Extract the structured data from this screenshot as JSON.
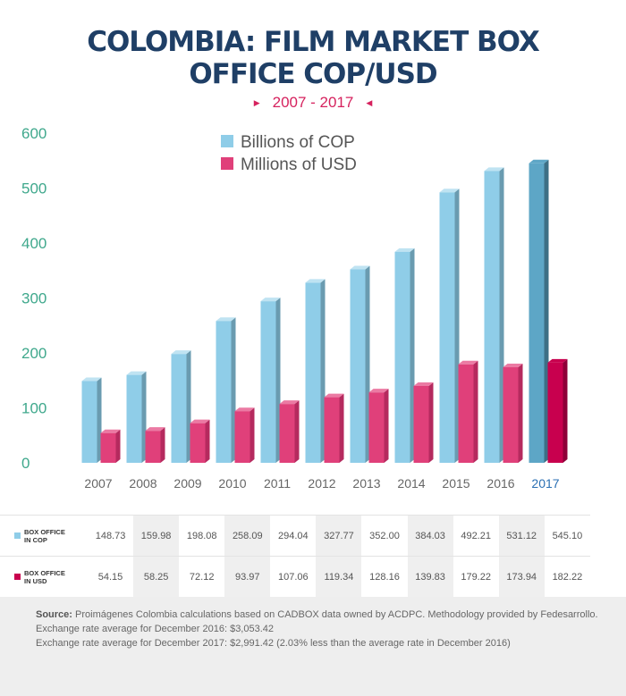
{
  "title_line1": "COLOMBIA: FILM MARKET BOX",
  "title_line2": "OFFICE COP/USD",
  "subtitle": "2007 - 2017",
  "colors": {
    "cop": "#8fcde8",
    "cop_side": "#6a9bb0",
    "cop_top": "#bfe3f2",
    "usd": "#e0407a",
    "usd_side": "#b52a5e",
    "usd_top": "#eb7aa3",
    "cop_hl": "#5da6c6",
    "cop_hl_side": "#3d6f85",
    "usd_hl": "#c8004e",
    "usd_hl_side": "#8e0038"
  },
  "chart_data": {
    "type": "bar",
    "categories": [
      "2007",
      "2008",
      "2009",
      "2010",
      "2011",
      "2012",
      "2013",
      "2014",
      "2015",
      "2016",
      "2017"
    ],
    "series": [
      {
        "name": "Billions of COP",
        "values": [
          148.73,
          159.98,
          198.08,
          258.09,
          294.04,
          327.77,
          352.0,
          384.03,
          492.21,
          531.12,
          545.1
        ]
      },
      {
        "name": "Millions of USD",
        "values": [
          54.15,
          58.25,
          72.12,
          93.97,
          107.06,
          119.34,
          128.16,
          139.83,
          179.22,
          173.94,
          182.22
        ]
      }
    ],
    "ylim": [
      0,
      600
    ],
    "yticks": [
      "0",
      "100",
      "200",
      "300",
      "400",
      "500",
      "600"
    ],
    "highlight_category": "2017",
    "legend_position": "top-center",
    "grid": false
  },
  "table": {
    "rows": [
      {
        "label_line1": "BOX OFFICE",
        "label_line2": "IN COP",
        "values": [
          "148.73",
          "159.98",
          "198.08",
          "258.09",
          "294.04",
          "327.77",
          "352.00",
          "384.03",
          "492.21",
          "531.12",
          "545.10"
        ]
      },
      {
        "label_line1": "BOX OFFICE",
        "label_line2": "IN USD",
        "values": [
          "54.15",
          "58.25",
          "72.12",
          "93.97",
          "107.06",
          "119.34",
          "128.16",
          "139.83",
          "179.22",
          "173.94",
          "182.22"
        ]
      }
    ]
  },
  "footer": {
    "source_label": "Source:",
    "source_text": " Proimágenes Colombia calculations based on CADBOX data owned by ACDPC. Methodology provided by Fedesarrollo.",
    "line2": "Exchange rate average for December 2016: $3,053.42",
    "line3": "Exchange rate average for December 2017: $2,991.42 (2.03% less than the average rate in December 2016)"
  }
}
